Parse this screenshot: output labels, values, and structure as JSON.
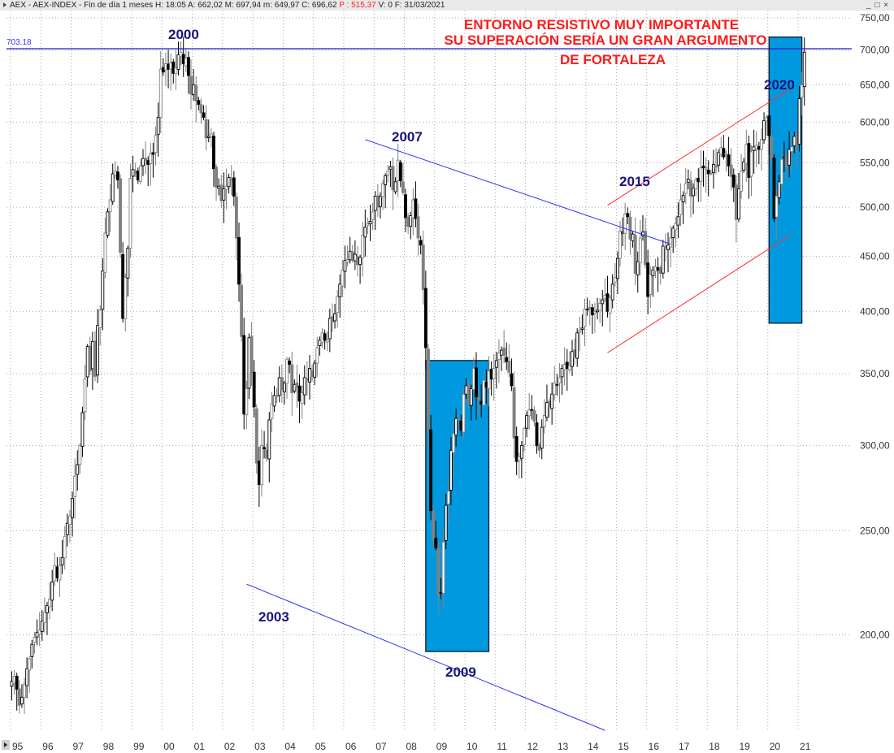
{
  "window": {
    "title": "AEX - AEX-INDEX - Fin de día 1 meses",
    "stats": {
      "H": "H: 18:05",
      "A": "A: 662,02",
      "M": "M: 697,94",
      "m": "m: 649,97",
      "C": "C: 696,62",
      "P": "P : 515,37",
      "V": "V: 0",
      "F": "F: 31/03/2021"
    },
    "buttons": {
      "minimize": "_",
      "maximize": "□",
      "close": "×"
    }
  },
  "colors": {
    "background": "#ffffff",
    "grid": "#a8a8a8",
    "up_candle_fill": "#ffffff",
    "down_candle_fill": "#000000",
    "alt_candle": "#808080",
    "resistance_line": "#1a1ad0",
    "trend_line_blue": "#2a2aff",
    "channel_red": "#ff3030",
    "highlight_box": "#0099e0",
    "year_label": "#16167a",
    "annotation": "#ff1a1a"
  },
  "chart_data": {
    "type": "candlestick",
    "title": "AEX - AEX-INDEX - Fin de día 1 meses",
    "xlabel": "",
    "ylabel": "",
    "yscale": "log",
    "ylim": [
      170,
      760
    ],
    "x_tick_labels": [
      "95",
      "96",
      "97",
      "98",
      "99",
      "00",
      "01",
      "02",
      "03",
      "04",
      "05",
      "06",
      "07",
      "08",
      "09",
      "10",
      "11",
      "12",
      "13",
      "14",
      "15",
      "16",
      "17",
      "18",
      "19",
      "20",
      "21"
    ],
    "y_tick_labels": [
      "750,00",
      "700,00",
      "650,00",
      "600,00",
      "550,00",
      "500,00",
      "450,00",
      "400,00",
      "350,00",
      "300,00",
      "250,00",
      "200,00"
    ],
    "y_ticks": [
      750,
      700,
      650,
      600,
      550,
      500,
      450,
      400,
      350,
      300,
      250,
      200
    ],
    "grid": true,
    "start": "1995-01",
    "interval": "1 month",
    "monthly_close": [
      181,
      183,
      178,
      172,
      175,
      180,
      186,
      190,
      196,
      199,
      201,
      202,
      206,
      210,
      213,
      216,
      224,
      232,
      226,
      232,
      236,
      247,
      254,
      258,
      268,
      281,
      288,
      300,
      322,
      346,
      371,
      352,
      375,
      348,
      388,
      401,
      436,
      473,
      495,
      508,
      537,
      540,
      530,
      454,
      394,
      430,
      458,
      532,
      542,
      538,
      530,
      546,
      555,
      553,
      548,
      561,
      560,
      583,
      606,
      672,
      668,
      680,
      672,
      681,
      666,
      674,
      693,
      697,
      680,
      688,
      663,
      637,
      650,
      628,
      623,
      612,
      606,
      580,
      582,
      585,
      543,
      522,
      523,
      507,
      520,
      523,
      533,
      530,
      512,
      468,
      424,
      379,
      321,
      339,
      378,
      351,
      326,
      289,
      276,
      300,
      298,
      292,
      317,
      328,
      334,
      334,
      347,
      338,
      343,
      361,
      357,
      336,
      342,
      340,
      330,
      336,
      347,
      345,
      354,
      348,
      358,
      370,
      376,
      382,
      376,
      376,
      394,
      391,
      398,
      413,
      424,
      437,
      446,
      447,
      455,
      446,
      452,
      442,
      449,
      471,
      479,
      483,
      485,
      495,
      512,
      500,
      512,
      526,
      535,
      540,
      545,
      519,
      528,
      553,
      529,
      516,
      489,
      480,
      491,
      508,
      488,
      468,
      461,
      419,
      370,
      311,
      261,
      245,
      241,
      218,
      219,
      244,
      264,
      272,
      297,
      308,
      318,
      317,
      310,
      335,
      341,
      328,
      339,
      354,
      333,
      331,
      328,
      345,
      340,
      352,
      346,
      354,
      360,
      366,
      368,
      364,
      359,
      351,
      341,
      305,
      290,
      293,
      300,
      311,
      320,
      324,
      324,
      316,
      300,
      297,
      312,
      320,
      329,
      326,
      335,
      343,
      342,
      347,
      354,
      357,
      354,
      356,
      367,
      363,
      382,
      384,
      386,
      402,
      402,
      403,
      397,
      400,
      401,
      407,
      410,
      414,
      400,
      412,
      424,
      430,
      448,
      475,
      474,
      493,
      490,
      467,
      472,
      434,
      445,
      468,
      474,
      442,
      413,
      433,
      437,
      440,
      437,
      434,
      460,
      458,
      461,
      468,
      478,
      483,
      490,
      508,
      513,
      526,
      531,
      512,
      521,
      530,
      528,
      544,
      544,
      544,
      537,
      538,
      548,
      545,
      562,
      568,
      557,
      561,
      546,
      534,
      522,
      487,
      520,
      540,
      551,
      572,
      533,
      563,
      569,
      571,
      566,
      578,
      602,
      606,
      583,
      555,
      488,
      512,
      528,
      554,
      557,
      545,
      566,
      569,
      582,
      571,
      631,
      650,
      697
    ],
    "annotations": [
      {
        "text": "2000",
        "type": "label"
      },
      {
        "text": "2003",
        "type": "label"
      },
      {
        "text": "2007",
        "type": "label"
      },
      {
        "text": "2009",
        "type": "label"
      },
      {
        "text": "2015",
        "type": "label"
      },
      {
        "text": "2020",
        "type": "label"
      },
      {
        "text": "ENTORNO RESISTIVO MUY IMPORTANTE",
        "type": "note"
      },
      {
        "text": "SU SUPERACIÓN SERÍA UN GRAN ARGUMENTO",
        "type": "note"
      },
      {
        "text": "DE FORTALEZA",
        "type": "note"
      }
    ],
    "reference_line": {
      "value": 703.18,
      "label": "703.18"
    },
    "trend_lines": [
      {
        "name": "2007-descending-resistance",
        "from": [
          "2006-09",
          578
        ],
        "to": [
          "2016-10",
          462
        ],
        "color": "#2a2aff"
      },
      {
        "name": "2003-2009-descending-support",
        "from": [
          "2002-10",
          223
        ],
        "to": [
          "2014-08",
          163
        ],
        "color": "#2a2aff"
      },
      {
        "name": "channel-upper",
        "from": [
          "2014-09",
          502
        ],
        "to": [
          "2020-11",
          648
        ],
        "color": "#ff3030"
      },
      {
        "name": "channel-lower",
        "from": [
          "2014-09",
          366
        ],
        "to": [
          "2020-10",
          472
        ],
        "color": "#ff3030"
      }
    ],
    "highlight_boxes": [
      {
        "name": "2009-box",
        "x_from": "2008-09",
        "x_to": "2010-10",
        "y_from": 193,
        "y_to": 360
      },
      {
        "name": "2020-box",
        "x_from": "2020-01",
        "x_to": "2021-02",
        "y_from": 390,
        "y_to": 720
      }
    ]
  },
  "labels": {
    "year_2000": "2000",
    "year_2003": "2003",
    "year_2007": "2007",
    "year_2009": "2009",
    "year_2015": "2015",
    "year_2020": "2020",
    "note_line1": "ENTORNO RESISTIVO MUY IMPORTANTE",
    "note_line2": "SU SUPERACIÓN SERÍA UN GRAN ARGUMENTO",
    "note_line3": "DE FORTALEZA",
    "ref_value": "703.18"
  }
}
